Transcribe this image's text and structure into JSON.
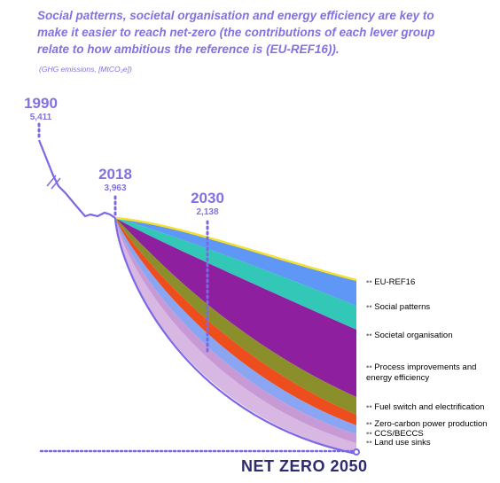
{
  "header": {
    "title": "Social patterns, societal organisation and energy efficiency are key to make it easier to reach net-zero (the contributions of each lever group relate to how ambitious the reference is (EU-REF16)).",
    "subtitle": "(GHG emissions, [MtCO₂e])",
    "title_color": "#8470e0"
  },
  "chart_data": {
    "type": "area",
    "title": "Social patterns, societal organisation and energy efficiency are key to make it easier to reach net-zero (the contributions of each lever group relate to how ambitious the reference is (EU-REF16)).",
    "ylabel": "(GHG emissions, [MtCO₂e])",
    "milestones": [
      {
        "year": "1990",
        "value": "5,411"
      },
      {
        "year": "2018",
        "value": "3,963"
      },
      {
        "year": "2030",
        "value": "2,138"
      }
    ],
    "end_label": "NET ZERO 2050",
    "x_range": [
      1990,
      2050
    ],
    "series": [
      {
        "name": "EU-REF16",
        "color": "#f2e033"
      },
      {
        "name": "Social patterns",
        "color": "#5e97f6"
      },
      {
        "name": "Societal organisation",
        "color": "#33c7b8"
      },
      {
        "name": "Process improvements and energy efficiency",
        "color": "#8e1f9e"
      },
      {
        "name": "Fuel switch and electrification",
        "color": "#8a8f2c"
      },
      {
        "name": "Zero-carbon power production",
        "color": "#ee4d1e"
      },
      {
        "name": "CCS/BECCS",
        "color": "#8aa6f2"
      },
      {
        "name": "Land use sinks",
        "color": "#c79ad6"
      }
    ],
    "historic_line_color": "#7b68e6"
  }
}
